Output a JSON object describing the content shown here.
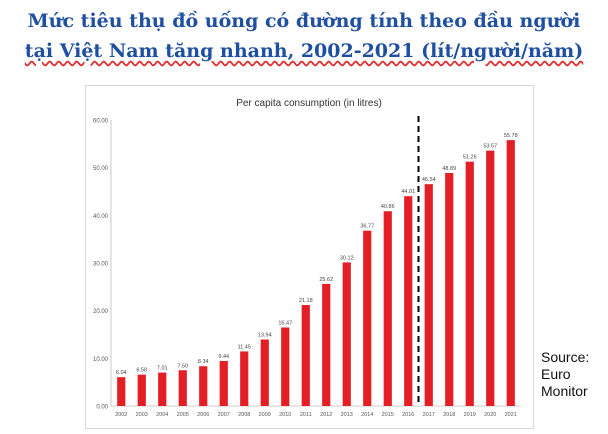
{
  "header": {
    "title_line_1": "Mức tiêu thụ đồ uống có đường tính theo đầu người",
    "title_line_2": "tại Việt Nam tăng nhanh, 2002-2021 (lít/người/năm)"
  },
  "source": {
    "line_1": "Source:",
    "line_2": "Euro",
    "line_3": "Monitor"
  },
  "colors": {
    "title": "#1f4fa0",
    "bar": "#e31e24",
    "dashed_line": "#000000"
  },
  "chart_data": {
    "type": "bar",
    "title": "Per capita consumption (in litres)",
    "categories": [
      "2002",
      "2003",
      "2004",
      "2005",
      "2006",
      "2007",
      "2008",
      "2009",
      "2010",
      "2011",
      "2012",
      "2013",
      "2014",
      "2015",
      "2016",
      "2017",
      "2018",
      "2019",
      "2020",
      "2021"
    ],
    "values": [
      6.04,
      6.58,
      7.01,
      7.5,
      8.34,
      9.44,
      11.45,
      13.94,
      16.47,
      21.18,
      25.62,
      30.12,
      36.77,
      40.86,
      44.01,
      46.54,
      48.89,
      51.26,
      53.57,
      55.78
    ],
    "value_labels": [
      "6.04",
      "6.58",
      "7.01",
      "7.50",
      "8.34",
      "9.44",
      "11.45",
      "13.94",
      "16.47",
      "21.18",
      "25.62",
      "30.12",
      "36.77",
      "40.86",
      "44.01",
      "46.54",
      "48.89",
      "51.26",
      "53.57",
      "55.78"
    ],
    "y_ticks": [
      "0.00",
      "10.00",
      "20.00",
      "30.00",
      "40.00",
      "50.00",
      "60.00"
    ],
    "ylim": [
      0,
      60
    ],
    "grid": false,
    "legend": "none",
    "divider_between": [
      "2016",
      "2017"
    ]
  }
}
